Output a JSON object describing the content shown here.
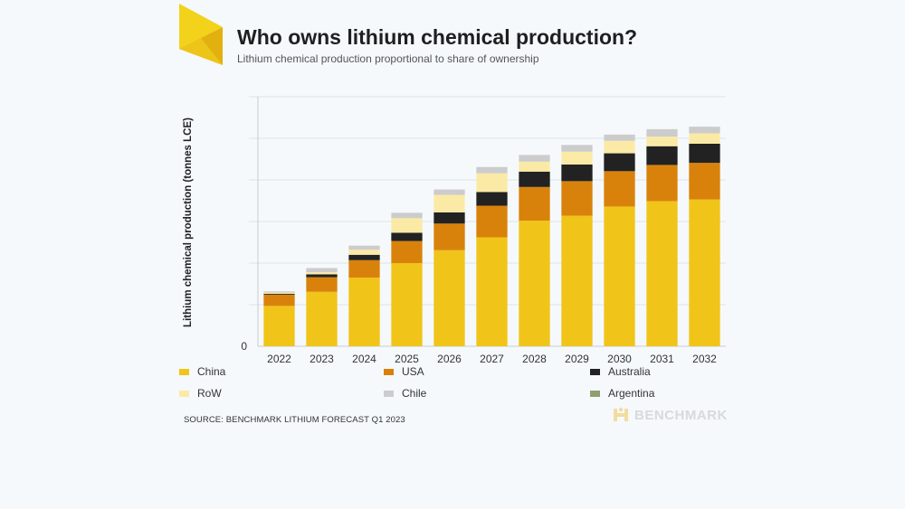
{
  "header": {
    "title": "Who owns lithium chemical production?",
    "subtitle": "Lithium chemical production proportional to share of ownership"
  },
  "footer": {
    "source": "SOURCE: BENCHMARK LITHIUM FORECAST Q1 2023",
    "brand": "BENCHMARK"
  },
  "colors": {
    "China": "#f1c419",
    "USA": "#d9820b",
    "Australia": "#222222",
    "RoW": "#fbeaa6",
    "Chile": "#cccccc",
    "Argentina": "#8fa070"
  },
  "chart_data": {
    "type": "bar",
    "stacked": true,
    "title": "Who owns lithium chemical production?",
    "subtitle": "Lithium chemical production proportional to share of ownership",
    "xlabel": "",
    "ylabel": "Lithium chemical production (tonnes LCE)",
    "y_tick_labels": [
      "0"
    ],
    "y_gridlines": 6,
    "ylim": [
      0,
      6
    ],
    "grid": true,
    "legend_position": "bottom",
    "categories": [
      "2022",
      "2023",
      "2024",
      "2025",
      "2026",
      "2027",
      "2028",
      "2029",
      "2030",
      "2031",
      "2032"
    ],
    "series": [
      {
        "name": "China",
        "values": [
          0.97,
          1.31,
          1.65,
          2.0,
          2.31,
          2.62,
          3.02,
          3.14,
          3.36,
          3.49,
          3.53
        ]
      },
      {
        "name": "USA",
        "values": [
          0.27,
          0.35,
          0.42,
          0.53,
          0.64,
          0.76,
          0.81,
          0.83,
          0.85,
          0.87,
          0.88
        ]
      },
      {
        "name": "Australia",
        "values": [
          0.02,
          0.07,
          0.13,
          0.2,
          0.27,
          0.33,
          0.37,
          0.4,
          0.43,
          0.45,
          0.46
        ]
      },
      {
        "name": "RoW",
        "values": [
          0.03,
          0.05,
          0.12,
          0.35,
          0.42,
          0.45,
          0.24,
          0.31,
          0.3,
          0.23,
          0.25
        ]
      },
      {
        "name": "Chile",
        "values": [
          0.03,
          0.1,
          0.1,
          0.13,
          0.13,
          0.15,
          0.16,
          0.16,
          0.15,
          0.18,
          0.16
        ]
      },
      {
        "name": "Argentina",
        "values": [
          0,
          0,
          0,
          0,
          0,
          0,
          0,
          0,
          0,
          0,
          0
        ]
      }
    ]
  }
}
